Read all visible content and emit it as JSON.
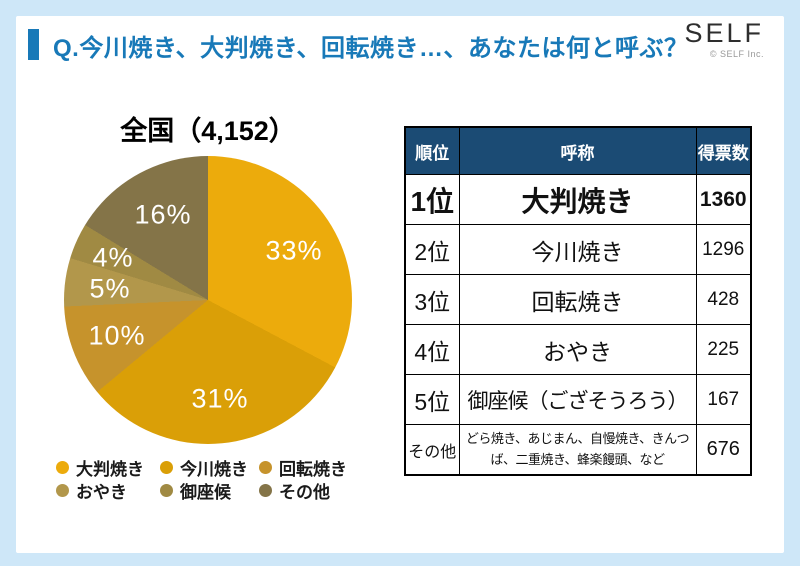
{
  "header": {
    "title": "Q.今川焼き、大判焼き、回転焼き…、あなたは何と呼ぶ？",
    "logo": "SELF",
    "logo_sub": "© SELF Inc."
  },
  "colors": {
    "accent_blue": "#1879B8",
    "table_header_bg": "#1B4B74",
    "page_border_bg": "#CEE7F8",
    "pie_label_text": "#ffffff"
  },
  "chart_data": {
    "type": "pie",
    "title": "全国（4,152）",
    "total_responses": 4152,
    "start_angle_deg": 0,
    "direction": "clockwise",
    "legend_position": "bottom",
    "slices": [
      {
        "label": "大判焼き",
        "percent_label": "33%",
        "percent": 33,
        "votes": 1360,
        "color": "#ECAB0C"
      },
      {
        "label": "今川焼き",
        "percent_label": "31%",
        "percent": 31,
        "votes": 1296,
        "color": "#DA9F07"
      },
      {
        "label": "回転焼き",
        "percent_label": "10%",
        "percent": 10,
        "votes": 428,
        "color": "#C6932C"
      },
      {
        "label": "おやき",
        "percent_label": "5%",
        "percent": 5,
        "votes": 225,
        "color": "#B2974B"
      },
      {
        "label": "御座候",
        "percent_label": "4%",
        "percent": 4,
        "votes": 167,
        "color": "#A08A43"
      },
      {
        "label": "その他",
        "percent_label": "16%",
        "percent": 16,
        "votes": 676,
        "color": "#847448"
      }
    ]
  },
  "table": {
    "headers": [
      "順位",
      "呼称",
      "得票数"
    ],
    "rows": [
      {
        "rank": "1位",
        "name": "大判焼き",
        "votes": "1360",
        "emphasis": true
      },
      {
        "rank": "2位",
        "name": "今川焼き",
        "votes": "1296",
        "emphasis": false
      },
      {
        "rank": "3位",
        "name": "回転焼き",
        "votes": "428",
        "emphasis": false
      },
      {
        "rank": "4位",
        "name": "おやき",
        "votes": "225",
        "emphasis": false
      },
      {
        "rank": "5位",
        "name": "御座候（ござそうろう）",
        "votes": "167",
        "emphasis": false
      },
      {
        "rank": "その他",
        "name": "どら焼き、あじまん、自慢焼き、きんつば、二重焼き、蜂楽饅頭、など",
        "votes": "676",
        "emphasis": false
      }
    ]
  }
}
